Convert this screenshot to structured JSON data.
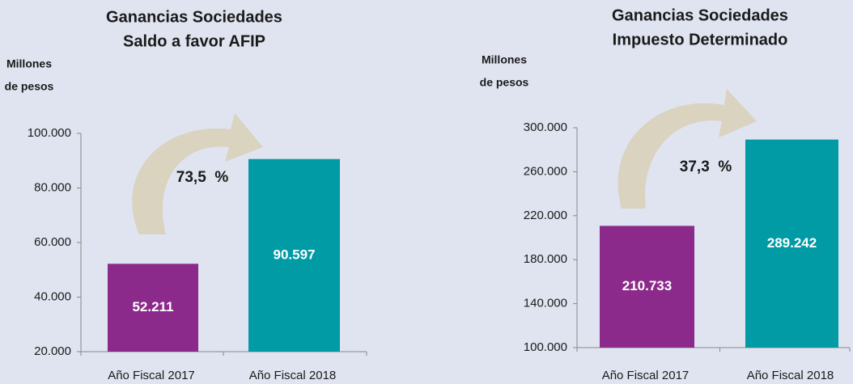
{
  "chart_data": [
    {
      "type": "bar",
      "title": "Ganancias Sociedades",
      "subtitle": "Saldo a favor AFIP",
      "ylabel": [
        "Millones",
        "de pesos"
      ],
      "categories": [
        "Año Fiscal 2017",
        "Año Fiscal 2018"
      ],
      "values": [
        52211,
        90597
      ],
      "value_labels": [
        "52.211",
        "90.597"
      ],
      "colors": [
        "#8b2a8a",
        "#009ba5"
      ],
      "annotation": "73,5  %",
      "ylim": [
        20000,
        100000
      ],
      "yticks": [
        {
          "value": 20000,
          "label": "20.000"
        },
        {
          "value": 40000,
          "label": "40.000"
        },
        {
          "value": 60000,
          "label": "60.000"
        },
        {
          "value": 80000,
          "label": "80.000"
        },
        {
          "value": 100000,
          "label": "100.000"
        }
      ]
    },
    {
      "type": "bar",
      "title": "Ganancias Sociedades",
      "subtitle": "Impuesto Determinado",
      "ylabel": [
        "Millones",
        "de pesos"
      ],
      "categories": [
        "Año Fiscal 2017",
        "Año Fiscal 2018"
      ],
      "values": [
        210733,
        289242
      ],
      "value_labels": [
        "210.733",
        "289.242"
      ],
      "colors": [
        "#8b2a8a",
        "#009ba5"
      ],
      "annotation": "37,3  %",
      "ylim": [
        100000,
        300000
      ],
      "yticks": [
        {
          "value": 100000,
          "label": "100.000"
        },
        {
          "value": 140000,
          "label": "140.000"
        },
        {
          "value": 180000,
          "label": "180.000"
        },
        {
          "value": 220000,
          "label": "220.000"
        },
        {
          "value": 260000,
          "label": "260.000"
        },
        {
          "value": 300000,
          "label": "300.000"
        }
      ]
    }
  ]
}
